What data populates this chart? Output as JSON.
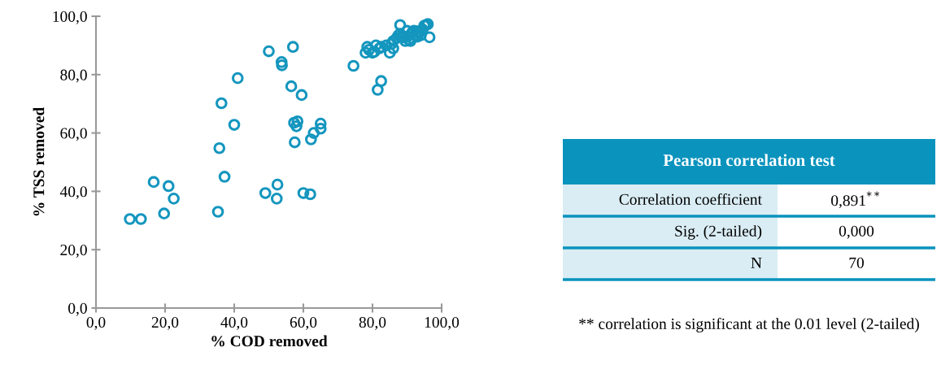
{
  "chart_data": [
    {
      "type": "scatter",
      "xlabel": "% COD removed",
      "ylabel": "% TSS removed",
      "marker": "circle",
      "grid": false,
      "color": "#1496be",
      "xlim": [
        0,
        100
      ],
      "ylim": [
        0,
        100
      ],
      "xticks": [
        {
          "value": 0,
          "label": "0,0"
        },
        {
          "value": 20,
          "label": "20,0"
        },
        {
          "value": 40,
          "label": "40,0"
        },
        {
          "value": 60,
          "label": "60,0"
        },
        {
          "value": 80,
          "label": "80,0"
        },
        {
          "value": 100,
          "label": "100,0"
        }
      ],
      "yticks": [
        {
          "value": 0,
          "label": "0,0"
        },
        {
          "value": 20,
          "label": "20,0"
        },
        {
          "value": 40,
          "label": "40,0"
        },
        {
          "value": 60,
          "label": "60,0"
        },
        {
          "value": 80,
          "label": "80,0"
        },
        {
          "value": 100,
          "label": "100,0"
        }
      ],
      "x": [
        9.8,
        13,
        19.7,
        16.7,
        21,
        22.5,
        35.3,
        35.7,
        36.3,
        37.2,
        40,
        41,
        49,
        50,
        52.5,
        52.3,
        53.7,
        53.8,
        56.5,
        57,
        57.3,
        57.5,
        58,
        58.3,
        59.5,
        60,
        62,
        62.2,
        63,
        65,
        65,
        74.5,
        81.5,
        82.5,
        78,
        78.5,
        80,
        80.5,
        82.5,
        84,
        85,
        85.5,
        86,
        87,
        88,
        88,
        89,
        90,
        90.5,
        91,
        91.5,
        92,
        92.5,
        93,
        93.5,
        94,
        94.5,
        95,
        95.5,
        96,
        96.5,
        88.5,
        89.5,
        87.5,
        82,
        86,
        79,
        81,
        90,
        93
      ],
      "values": [
        30.5,
        30.5,
        32.4,
        43.2,
        41.8,
        37.5,
        33,
        54.8,
        70.2,
        45,
        62.8,
        78.8,
        39.4,
        88,
        42.3,
        37.5,
        84.3,
        83.2,
        76,
        89.5,
        63.5,
        56.8,
        62.3,
        64,
        73,
        39.4,
        39,
        57.8,
        60,
        61.5,
        63.2,
        83,
        74.8,
        77.8,
        87.5,
        89.5,
        87.5,
        87.8,
        89.5,
        90,
        87.5,
        90.5,
        91.5,
        92.5,
        97,
        94,
        92.8,
        93,
        92,
        91.5,
        94.5,
        95,
        93.5,
        94.8,
        94.5,
        93.5,
        95.5,
        96.8,
        97,
        97.3,
        92.8,
        93.2,
        91.5,
        93.5,
        89,
        89,
        88.5,
        90,
        95,
        93
      ]
    },
    {
      "type": "other",
      "title": "Pearson correlation test",
      "colors": [
        "#0a93bd",
        "#daedf4"
      ],
      "annotations": [
        "Correlation coefficient",
        "0,891$^{**}$",
        "Sig. (2-tailed)",
        "0,000",
        "N",
        "70",
        "** correlation is significant at the 0.01 level (2-tailed)"
      ]
    }
  ]
}
